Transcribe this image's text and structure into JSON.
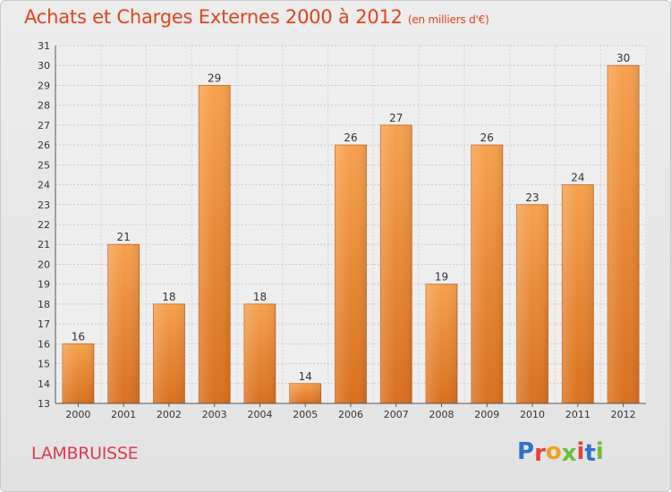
{
  "header": {
    "title": "Achats et Charges Externes 2000 à 2012",
    "subtitle": "(en milliers d'€)"
  },
  "footer": {
    "commune": "LAMBRUISSE",
    "logo": {
      "letters": [
        "P",
        "r",
        "o",
        "x",
        "i",
        "t",
        "i"
      ],
      "colors": [
        "#2e74c9",
        "#e8413a",
        "#f0a020",
        "#6abe3a",
        "#e8413a",
        "#2e74c9",
        "#6abe3a"
      ]
    }
  },
  "chart_data": {
    "type": "bar",
    "title": "Achats et Charges Externes 2000 à 2012",
    "subtitle": "(en milliers d'€)",
    "xlabel": "",
    "ylabel": "",
    "categories": [
      "2000",
      "2001",
      "2002",
      "2003",
      "2004",
      "2005",
      "2006",
      "2007",
      "2008",
      "2009",
      "2010",
      "2011",
      "2012"
    ],
    "values": [
      16,
      21,
      18,
      29,
      18,
      14,
      26,
      27,
      19,
      26,
      23,
      24,
      30
    ],
    "ylim": [
      13,
      31
    ],
    "yticks": [
      13,
      14,
      15,
      16,
      17,
      18,
      19,
      20,
      21,
      22,
      23,
      24,
      25,
      26,
      27,
      28,
      29,
      30,
      31
    ],
    "grid": true,
    "bar_color": "#f2973f",
    "legend": "none"
  }
}
